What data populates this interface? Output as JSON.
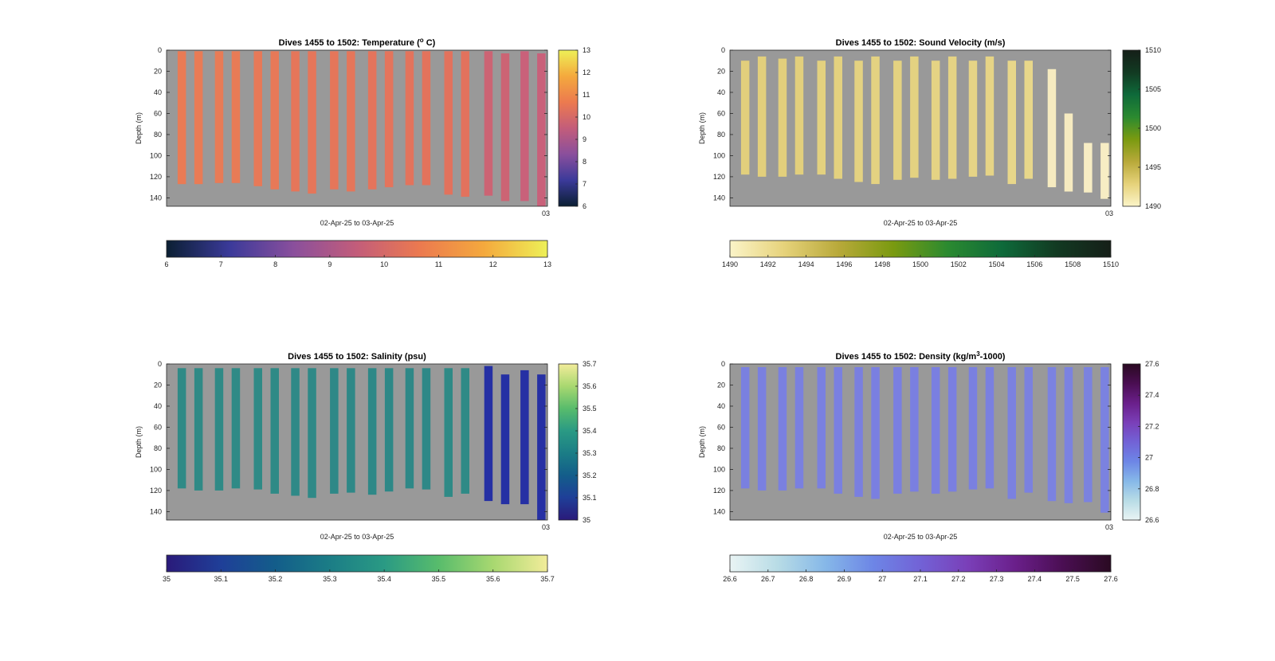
{
  "chart_data": [
    {
      "type": "heatmap",
      "id": "temperature",
      "title": "Dives 1455 to 1502: Temperature (° C)",
      "title_parts": [
        "Dives 1455 to 1502: Temperature (",
        "o",
        " C)"
      ],
      "ylabel": "Depth (m)",
      "xlabel": "02-Apr-25 to 03-Apr-25",
      "x_tick_label": "03",
      "y_ticks": [
        0,
        20,
        40,
        60,
        80,
        100,
        120,
        140
      ],
      "ylim": [
        0,
        148
      ],
      "colorbar": {
        "min": 6,
        "max": 13,
        "ticks": [
          "6",
          "7",
          "8",
          "9",
          "10",
          "11",
          "12",
          "13"
        ],
        "colors": [
          "#0b1f33",
          "#3b3a9a",
          "#8a4f9c",
          "#c35d7a",
          "#ec7a4f",
          "#f4a93d",
          "#eef057"
        ]
      },
      "bar_colors": [
        "#e97b55",
        "#e97b55",
        "#e87b56",
        "#e87b56",
        "#e77958",
        "#e77958",
        "#e5765a",
        "#e5765a",
        "#e5765a",
        "#e5765a",
        "#e4745c",
        "#e4745c",
        "#e3735c",
        "#e3735c",
        "#e2725d",
        "#e2725d",
        "#cc6474",
        "#cc6474",
        "#c9617a",
        "#c9617a"
      ],
      "profiles": [
        {
          "top": 1,
          "bottom": 127
        },
        {
          "top": 1,
          "bottom": 127
        },
        {
          "top": 1,
          "bottom": 126
        },
        {
          "top": 1,
          "bottom": 126
        },
        {
          "top": 1,
          "bottom": 129
        },
        {
          "top": 1,
          "bottom": 132
        },
        {
          "top": 1,
          "bottom": 134
        },
        {
          "top": 1,
          "bottom": 136
        },
        {
          "top": 1,
          "bottom": 132
        },
        {
          "top": 1,
          "bottom": 134
        },
        {
          "top": 1,
          "bottom": 132
        },
        {
          "top": 1,
          "bottom": 130
        },
        {
          "top": 1,
          "bottom": 128
        },
        {
          "top": 1,
          "bottom": 128
        },
        {
          "top": 1,
          "bottom": 137
        },
        {
          "top": 1,
          "bottom": 139
        },
        {
          "top": 1,
          "bottom": 138
        },
        {
          "top": 3,
          "bottom": 143
        },
        {
          "top": 1,
          "bottom": 143
        },
        {
          "top": 3,
          "bottom": 148
        }
      ]
    },
    {
      "type": "heatmap",
      "id": "sound_velocity",
      "title": "Dives 1455 to 1502: Sound Velocity (m/s)",
      "ylabel": "Depth (m)",
      "xlabel": "02-Apr-25 to 03-Apr-25",
      "x_tick_label": "03",
      "y_ticks": [
        0,
        20,
        40,
        60,
        80,
        100,
        120,
        140
      ],
      "ylim": [
        0,
        148
      ],
      "colorbar": {
        "min": 1490,
        "max": 1510,
        "ticks": [
          "1490",
          "1492",
          "1494",
          "1496",
          "1498",
          "1500",
          "1502",
          "1504",
          "1506",
          "1508",
          "1510"
        ],
        "vticks": [
          "1490",
          "1495",
          "1500",
          "1505",
          "1510"
        ],
        "colors": [
          "#fbf4c8",
          "#e6d27a",
          "#b8a93a",
          "#7a9a10",
          "#2b8a30",
          "#0e6a3a",
          "#123a22",
          "#151f18"
        ]
      },
      "bar_colors": [
        "#e2cf7c",
        "#e2cf7c",
        "#e2cf7c",
        "#e2cf7c",
        "#e3d17f",
        "#e3d17f",
        "#e4d281",
        "#e4d281",
        "#e4d281",
        "#e4d281",
        "#e5d384",
        "#e5d384",
        "#e6d486",
        "#e6d486",
        "#e8d78a",
        "#e8d78a",
        "#f6ebc0",
        "#f6ebc0",
        "#f7edc4",
        "#f7edc4"
      ],
      "profiles": [
        {
          "top": 10,
          "bottom": 118
        },
        {
          "top": 6,
          "bottom": 120
        },
        {
          "top": 8,
          "bottom": 120
        },
        {
          "top": 6,
          "bottom": 118
        },
        {
          "top": 10,
          "bottom": 118
        },
        {
          "top": 6,
          "bottom": 122
        },
        {
          "top": 10,
          "bottom": 125
        },
        {
          "top": 6,
          "bottom": 127
        },
        {
          "top": 10,
          "bottom": 123
        },
        {
          "top": 6,
          "bottom": 121
        },
        {
          "top": 10,
          "bottom": 123
        },
        {
          "top": 6,
          "bottom": 122
        },
        {
          "top": 10,
          "bottom": 120
        },
        {
          "top": 6,
          "bottom": 119
        },
        {
          "top": 10,
          "bottom": 127
        },
        {
          "top": 10,
          "bottom": 122
        },
        {
          "top": 18,
          "bottom": 130
        },
        {
          "top": 60,
          "bottom": 134
        },
        {
          "top": 88,
          "bottom": 135
        },
        {
          "top": 88,
          "bottom": 141
        }
      ]
    },
    {
      "type": "heatmap",
      "id": "salinity",
      "title": "Dives 1455 to 1502: Salinity (psu)",
      "ylabel": "Depth (m)",
      "xlabel": "02-Apr-25 to 03-Apr-25",
      "x_tick_label": "03",
      "y_ticks": [
        0,
        20,
        40,
        60,
        80,
        100,
        120,
        140
      ],
      "ylim": [
        0,
        148
      ],
      "colorbar": {
        "min": 35,
        "max": 35.7,
        "ticks": [
          "35",
          "35.1",
          "35.2",
          "35.3",
          "35.4",
          "35.5",
          "35.6",
          "35.7"
        ],
        "colors": [
          "#2a1a7a",
          "#1f3f98",
          "#135d8a",
          "#1b7d86",
          "#2a9a84",
          "#58bc6c",
          "#a8d870",
          "#f2ec9a"
        ]
      },
      "bar_colors": [
        "#2f8a86",
        "#2f8a86",
        "#2f8a86",
        "#2f8a86",
        "#2f8a86",
        "#2f8a86",
        "#2f8987",
        "#2f8987",
        "#2e8887",
        "#2e8887",
        "#2e8887",
        "#2e8887",
        "#2e8887",
        "#2e8887",
        "#2f8a86",
        "#2f8a86",
        "#2530a4",
        "#2530a4",
        "#2630a4",
        "#2630a4"
      ],
      "profiles": [
        {
          "top": 4,
          "bottom": 118
        },
        {
          "top": 4,
          "bottom": 120
        },
        {
          "top": 4,
          "bottom": 120
        },
        {
          "top": 4,
          "bottom": 118
        },
        {
          "top": 4,
          "bottom": 119
        },
        {
          "top": 4,
          "bottom": 123
        },
        {
          "top": 4,
          "bottom": 125
        },
        {
          "top": 4,
          "bottom": 127
        },
        {
          "top": 4,
          "bottom": 123
        },
        {
          "top": 4,
          "bottom": 122
        },
        {
          "top": 4,
          "bottom": 124
        },
        {
          "top": 4,
          "bottom": 121
        },
        {
          "top": 4,
          "bottom": 118
        },
        {
          "top": 4,
          "bottom": 119
        },
        {
          "top": 4,
          "bottom": 126
        },
        {
          "top": 4,
          "bottom": 123
        },
        {
          "top": 2,
          "bottom": 130
        },
        {
          "top": 10,
          "bottom": 133
        },
        {
          "top": 6,
          "bottom": 133
        },
        {
          "top": 10,
          "bottom": 148
        }
      ]
    },
    {
      "type": "heatmap",
      "id": "density",
      "title": "Dives 1455 to 1502: Density (kg/m³-1000)",
      "title_parts": [
        "Dives 1455 to 1502: Density (kg/m",
        "3",
        "-1000)"
      ],
      "ylabel": "Depth (m)",
      "xlabel": "02-Apr-25 to 03-Apr-25",
      "x_tick_label": "03",
      "y_ticks": [
        0,
        20,
        40,
        60,
        80,
        100,
        120,
        140
      ],
      "ylim": [
        0,
        148
      ],
      "colorbar": {
        "min": 26.6,
        "max": 27.6,
        "ticks": [
          "26.6",
          "26.7",
          "26.8",
          "26.9",
          "27",
          "27.1",
          "27.2",
          "27.3",
          "27.4",
          "27.5",
          "27.6"
        ],
        "vticks": [
          "26.6",
          "26.8",
          "27",
          "27.2",
          "27.4",
          "27.6"
        ],
        "colors": [
          "#e9f4f4",
          "#b8dce6",
          "#86b8e8",
          "#6d86e6",
          "#7262d6",
          "#7a3fb8",
          "#6a1f8a",
          "#4a0e52",
          "#2a0a22"
        ]
      },
      "bar_colors": [
        "#7a80e0",
        "#7a80e0",
        "#7a80e0",
        "#7a80e0",
        "#7a80e0",
        "#7a80e0",
        "#7a7fe0",
        "#7a7fe0",
        "#7a7fe0",
        "#7a7fe0",
        "#7a7fe0",
        "#7a7fe0",
        "#7a80e0",
        "#7a80e0",
        "#7b81e0",
        "#7b81e0",
        "#7b82e0",
        "#7b82e0",
        "#7b82e0",
        "#7b82e0"
      ],
      "profiles": [
        {
          "top": 3,
          "bottom": 118
        },
        {
          "top": 3,
          "bottom": 120
        },
        {
          "top": 3,
          "bottom": 120
        },
        {
          "top": 3,
          "bottom": 118
        },
        {
          "top": 3,
          "bottom": 118
        },
        {
          "top": 3,
          "bottom": 123
        },
        {
          "top": 3,
          "bottom": 126
        },
        {
          "top": 3,
          "bottom": 128
        },
        {
          "top": 3,
          "bottom": 123
        },
        {
          "top": 3,
          "bottom": 121
        },
        {
          "top": 3,
          "bottom": 123
        },
        {
          "top": 3,
          "bottom": 121
        },
        {
          "top": 3,
          "bottom": 119
        },
        {
          "top": 3,
          "bottom": 118
        },
        {
          "top": 3,
          "bottom": 128
        },
        {
          "top": 3,
          "bottom": 122
        },
        {
          "top": 3,
          "bottom": 130
        },
        {
          "top": 3,
          "bottom": 132
        },
        {
          "top": 3,
          "bottom": 131
        },
        {
          "top": 3,
          "bottom": 141
        }
      ]
    }
  ]
}
